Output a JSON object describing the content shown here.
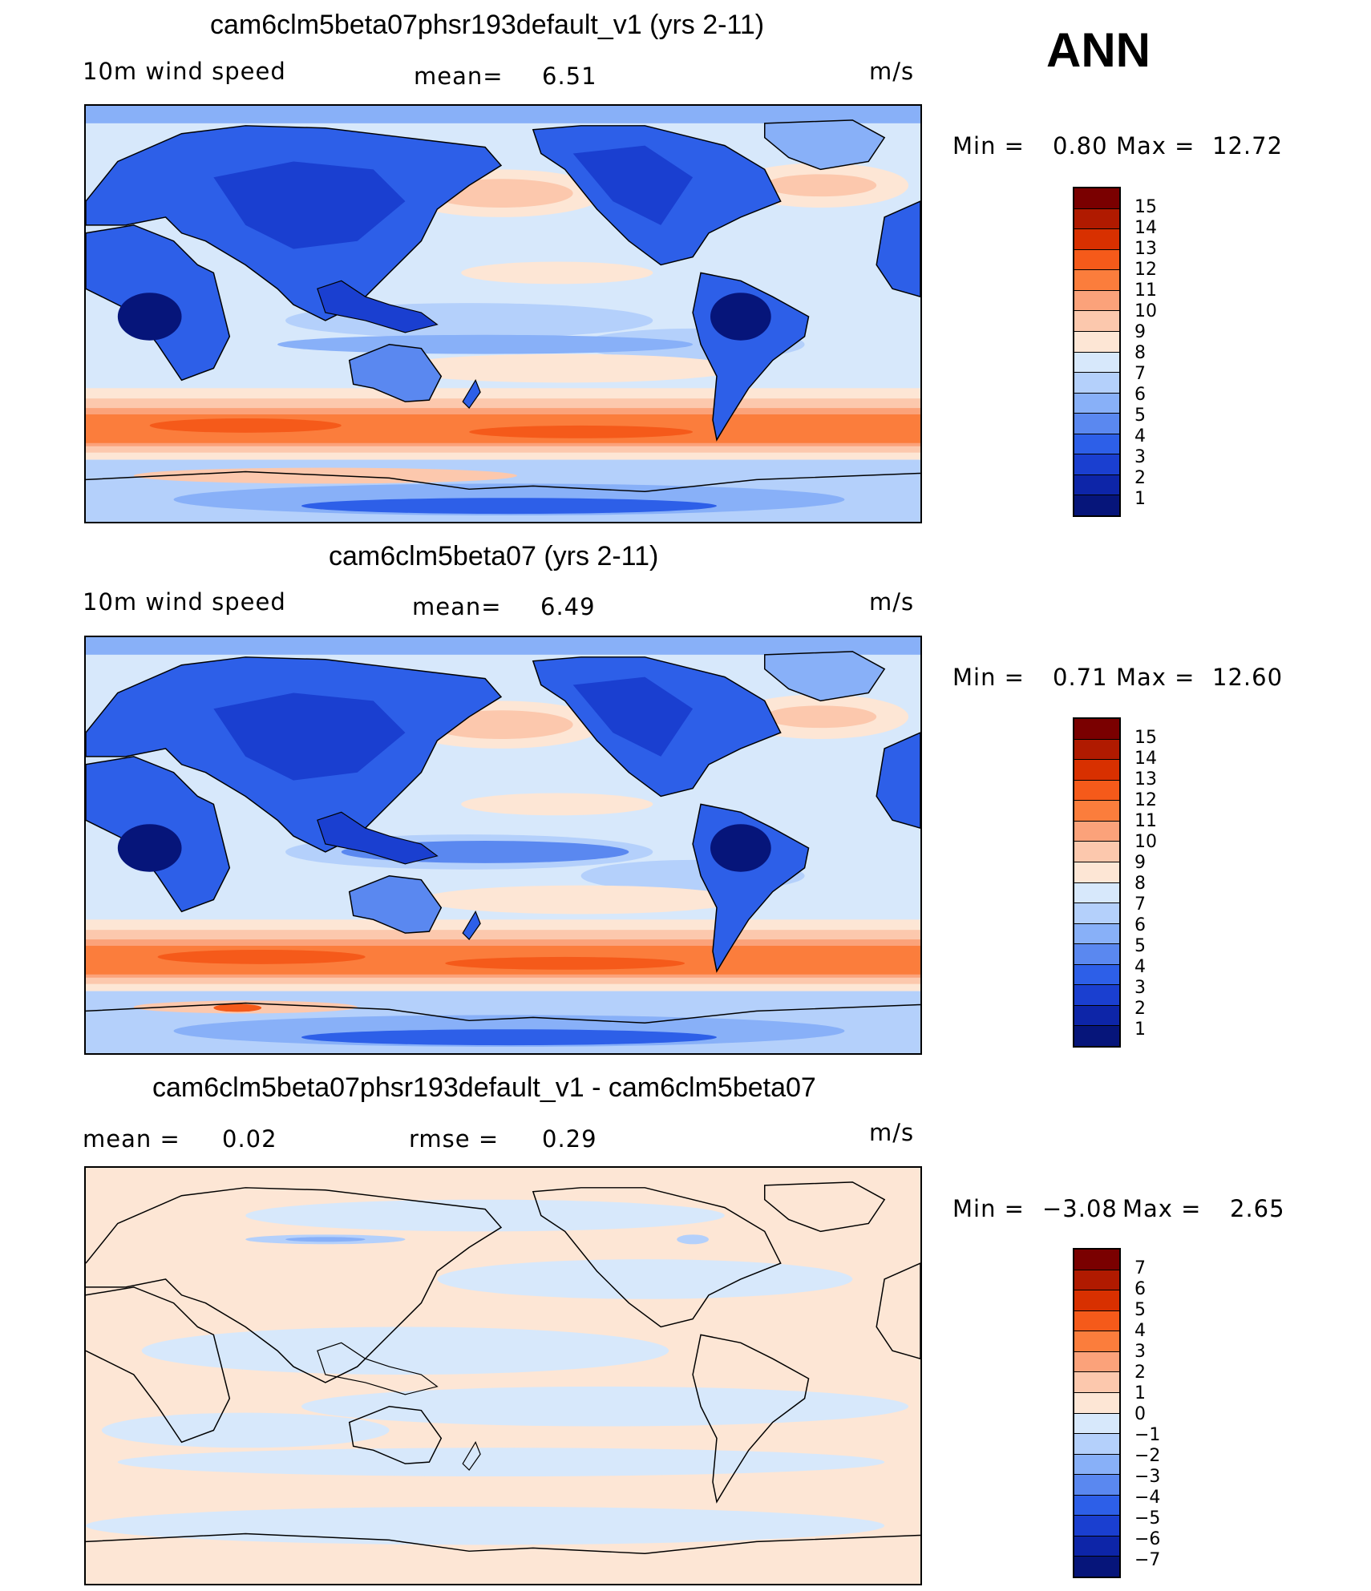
{
  "season": "ANN",
  "panels": [
    {
      "title": "cam6clm5beta07phsr193default_v1 (yrs 2-11)",
      "left_label": "10m  wind  speed",
      "mid_label": "mean=",
      "mid_value": "6.51",
      "units": "m/s",
      "min_label": "Min  =",
      "min_value": "0.80",
      "max_label": "Max  =",
      "max_value": "12.72",
      "colorbar_levels": [
        "15",
        "14",
        "13",
        "12",
        "11",
        "10",
        "9",
        "8",
        "7",
        "6",
        "5",
        "4",
        "3",
        "2",
        "1"
      ]
    },
    {
      "title": "cam6clm5beta07 (yrs 2-11)",
      "left_label": "10m  wind  speed",
      "mid_label": "mean=",
      "mid_value": "6.49",
      "units": "m/s",
      "min_label": "Min  =",
      "min_value": "0.71",
      "max_label": "Max  =",
      "max_value": "12.60",
      "colorbar_levels": [
        "15",
        "14",
        "13",
        "12",
        "11",
        "10",
        "9",
        "8",
        "7",
        "6",
        "5",
        "4",
        "3",
        "2",
        "1"
      ]
    },
    {
      "title": "cam6clm5beta07phsr193default_v1 - cam6clm5beta07",
      "left_label": "mean  =",
      "left_value": "0.02",
      "mid_label": "rmse  =",
      "mid_value": "0.29",
      "units": "m/s",
      "min_label": "Min  =",
      "min_value": "−3.08",
      "max_label": "Max  =",
      "max_value": "2.65",
      "colorbar_levels": [
        "7",
        "6",
        "5",
        "4",
        "3",
        "2",
        "1",
        "0",
        "−1",
        "−2",
        "−3",
        "−4",
        "−5",
        "−6",
        "−7"
      ]
    }
  ],
  "colors": {
    "speed_scale": [
      "#7a0000",
      "#b01a00",
      "#d83000",
      "#f55a1a",
      "#fb7d3c",
      "#fba27a",
      "#fcc8ad",
      "#fde6d5",
      "#d7e8fb",
      "#b4d0fb",
      "#88b0f8",
      "#5a88f0",
      "#2d5fe8",
      "#1a3fd0",
      "#0d25a8",
      "#06157a"
    ],
    "diff_scale": [
      "#7a0000",
      "#b01a00",
      "#d83000",
      "#f55a1a",
      "#fb7d3c",
      "#fba27a",
      "#fcc8ad",
      "#fde6d5",
      "#d7e8fb",
      "#b4d0fb",
      "#88b0f8",
      "#5a88f0",
      "#2d5fe8",
      "#1a3fd0",
      "#0d25a8",
      "#06157a"
    ]
  }
}
